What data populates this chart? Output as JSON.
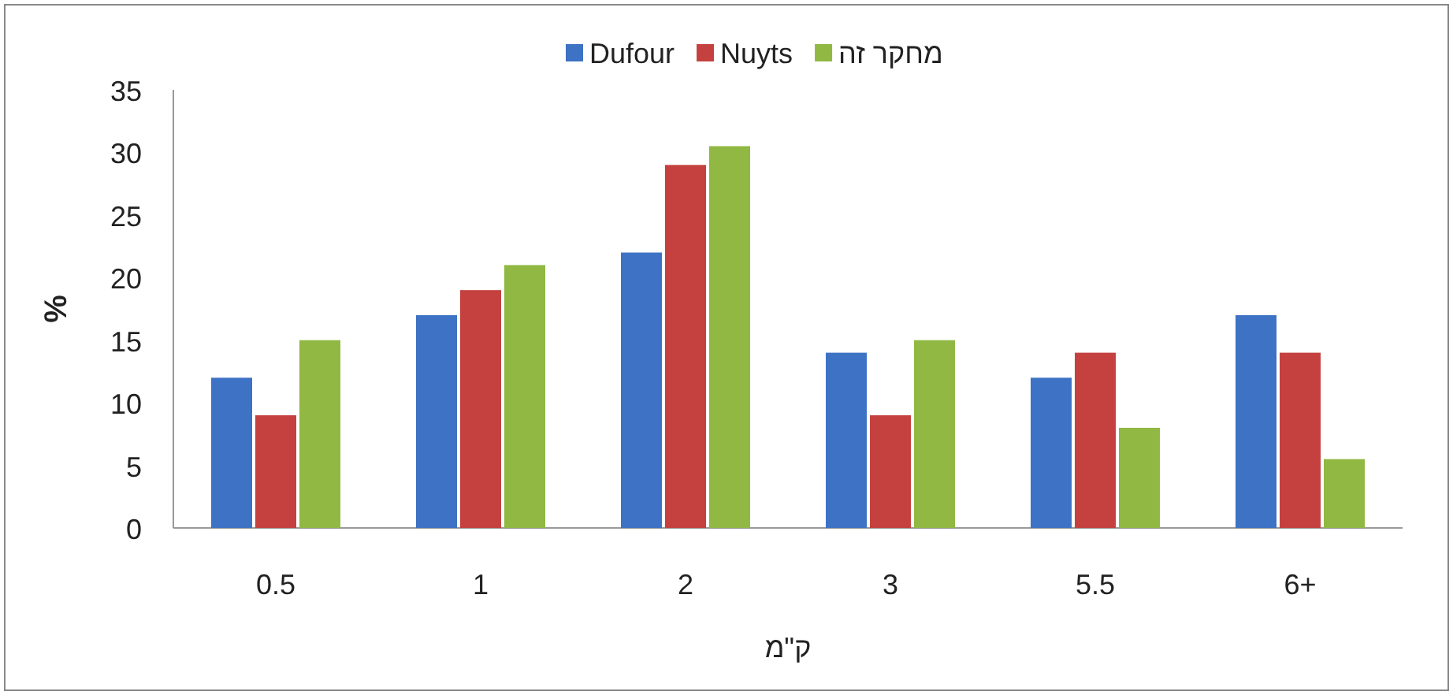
{
  "chart_data": {
    "type": "bar",
    "xlabel": "ק\"מ",
    "ylabel": "%",
    "categories": [
      "0.5",
      "1",
      "2",
      "3",
      "5.5",
      "6+"
    ],
    "series": [
      {
        "name": "Dufour",
        "color": "#3d72c4",
        "values": [
          12,
          17,
          22,
          14,
          12,
          17
        ]
      },
      {
        "name": "Nuyts",
        "color": "#c4413f",
        "values": [
          9,
          19,
          29,
          9,
          14,
          14
        ]
      },
      {
        "name": "מחקר זה",
        "color": "#90b843",
        "values": [
          15,
          21,
          30.5,
          15,
          8,
          5.5
        ]
      }
    ],
    "ylim": [
      0,
      35
    ],
    "yticks": [
      0,
      5,
      10,
      15,
      20,
      25,
      30,
      35
    ],
    "grid": false,
    "legend": "top"
  }
}
